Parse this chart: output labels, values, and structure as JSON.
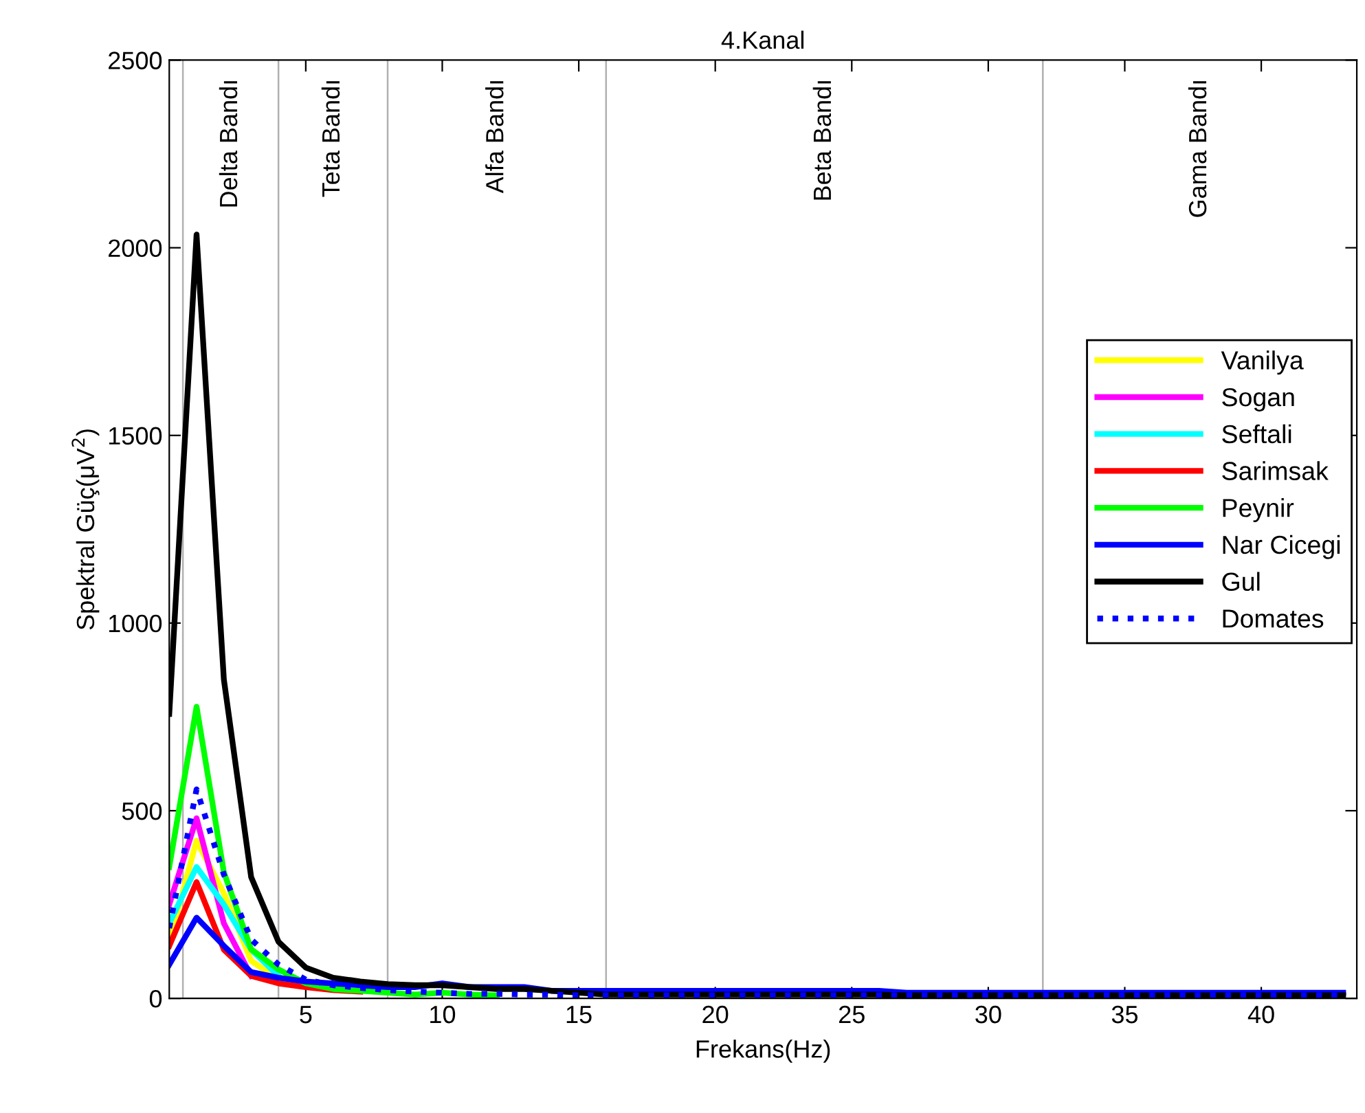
{
  "chart_data": {
    "type": "line",
    "title": "4.Kanal",
    "xlabel": "Frekans(Hz)",
    "ylabel": "Spektral Güç(μV$^{2}$)",
    "x": [
      0,
      1,
      2,
      3,
      4,
      5,
      6,
      7,
      8,
      9,
      10,
      11,
      12,
      13,
      14,
      15,
      16,
      17,
      18,
      19,
      20,
      21,
      22,
      23,
      24,
      25,
      26,
      27,
      28,
      29,
      30,
      31,
      32,
      33,
      34,
      35,
      36,
      37,
      38,
      39,
      40,
      41,
      42,
      43
    ],
    "series": [
      {
        "name": "Vanilya",
        "color": "#ffff00",
        "values": [
          150,
          420,
          280,
          100,
          50,
          null,
          null,
          null,
          null,
          null,
          null,
          null,
          null,
          null,
          null,
          null,
          null,
          null,
          null,
          null,
          null,
          null,
          null,
          null,
          null,
          null,
          null,
          null,
          null,
          null,
          null,
          null,
          null,
          null,
          null,
          null,
          null,
          null,
          null,
          null,
          null,
          null,
          null,
          null
        ]
      },
      {
        "name": "Sogan",
        "color": "#ff00ff",
        "values": [
          250,
          480,
          200,
          60,
          null,
          null,
          null,
          null,
          null,
          null,
          null,
          null,
          null,
          null,
          null,
          null,
          null,
          null,
          null,
          null,
          null,
          null,
          null,
          null,
          null,
          null,
          null,
          null,
          null,
          null,
          null,
          null,
          null,
          null,
          null,
          null,
          null,
          null,
          null,
          null,
          null,
          null,
          null,
          null
        ]
      },
      {
        "name": "Seftali",
        "color": "#00ffff",
        "values": [
          200,
          350,
          250,
          130,
          60,
          null,
          null,
          null,
          null,
          null,
          null,
          null,
          null,
          null,
          null,
          null,
          null,
          null,
          null,
          null,
          null,
          null,
          null,
          null,
          null,
          null,
          null,
          null,
          null,
          null,
          null,
          null,
          null,
          null,
          null,
          null,
          null,
          null,
          null,
          null,
          null,
          null,
          null,
          null
        ]
      },
      {
        "name": "Sarimsak",
        "color": "#ff0000",
        "values": [
          140,
          310,
          130,
          60,
          40,
          30,
          22,
          18,
          null,
          null,
          null,
          null,
          null,
          null,
          null,
          null,
          null,
          null,
          null,
          null,
          null,
          null,
          null,
          null,
          null,
          null,
          null,
          null,
          null,
          null,
          null,
          null,
          null,
          null,
          null,
          null,
          null,
          null,
          null,
          null,
          null,
          null,
          null,
          null
        ]
      },
      {
        "name": "Peynir",
        "color": "#00ff00",
        "values": [
          350,
          777,
          336,
          131,
          77,
          40,
          25,
          20,
          15,
          10,
          15,
          10,
          8,
          null,
          null,
          null,
          null,
          null,
          null,
          null,
          null,
          null,
          null,
          null,
          null,
          null,
          null,
          null,
          null,
          null,
          null,
          null,
          null,
          null,
          null,
          null,
          null,
          null,
          null,
          null,
          null,
          null,
          null,
          null
        ]
      },
      {
        "name": "Nar Cicegi",
        "color": "#0000ff",
        "values": [
          90,
          215,
          140,
          70,
          55,
          45,
          40,
          35,
          30,
          30,
          40,
          30,
          30,
          30,
          20,
          20,
          20,
          20,
          20,
          20,
          20,
          20,
          20,
          20,
          20,
          20,
          20,
          15,
          15,
          15,
          15,
          15,
          15,
          15,
          15,
          15,
          15,
          15,
          15,
          15,
          15,
          15,
          15,
          15
        ]
      },
      {
        "name": "Gul",
        "color": "#000000",
        "values": [
          758,
          2035,
          850,
          323,
          151,
          82,
          55,
          45,
          38,
          35,
          35,
          30,
          25,
          25,
          20,
          15,
          10,
          10,
          10,
          10,
          10,
          10,
          10,
          10,
          10,
          10,
          10,
          8,
          8,
          8,
          8,
          8,
          8,
          8,
          8,
          8,
          8,
          8,
          8,
          8,
          8,
          8,
          8,
          8
        ]
      },
      {
        "name": "Domates",
        "color": "#0000ff",
        "line_style": "dotted",
        "values": [
          187,
          557,
          330,
          157,
          90,
          50,
          35,
          28,
          22,
          18,
          15,
          12,
          12,
          10,
          10,
          8,
          8,
          8,
          8,
          8,
          8,
          8,
          8,
          8,
          8,
          8,
          8,
          8,
          8,
          8,
          8,
          8,
          8,
          8,
          8,
          8,
          8,
          8,
          8,
          8,
          8,
          8,
          8,
          8
        ]
      }
    ],
    "xlim": [
      0,
      43.5
    ],
    "ylim": [
      0,
      2500
    ],
    "xticks": [
      5,
      10,
      15,
      20,
      25,
      30,
      35,
      40
    ],
    "yticks": [
      0,
      500,
      1000,
      1500,
      2000,
      2500
    ],
    "ref_lines": [
      {
        "axis": "x",
        "value": 0.5,
        "color": "#b0b0b0"
      },
      {
        "axis": "x",
        "value": 4,
        "color": "#b0b0b0"
      },
      {
        "axis": "x",
        "value": 8,
        "color": "#b0b0b0"
      },
      {
        "axis": "x",
        "value": 16,
        "color": "#b0b0b0"
      },
      {
        "axis": "x",
        "value": 32,
        "color": "#b0b0b0"
      }
    ],
    "annotations": [
      "Delta Bandı",
      "Teta Bandı",
      "Alfa Bandı",
      "Beta Bandı",
      "Gama Bandı"
    ],
    "legend": "right",
    "grid": false,
    "line_style": "solid"
  }
}
